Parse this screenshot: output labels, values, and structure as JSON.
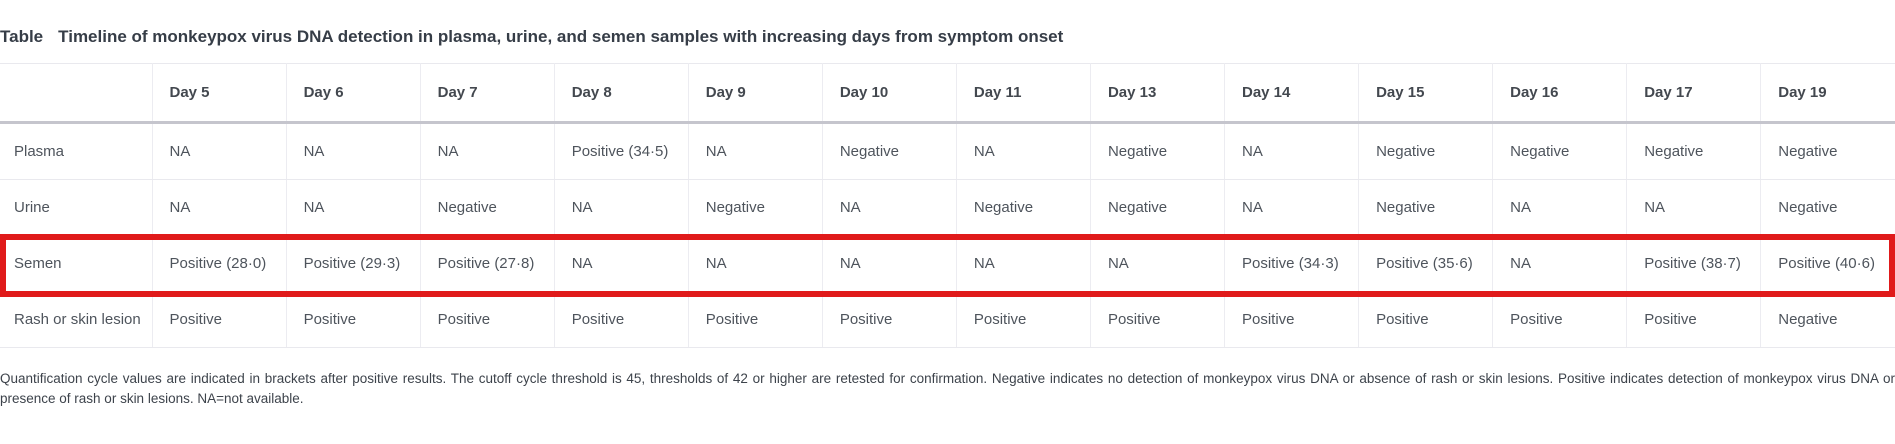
{
  "title": {
    "label": "Table",
    "caption": "Timeline of monkeypox virus DNA detection in plasma, urine, and semen samples with increasing days from symptom onset"
  },
  "table": {
    "columns": [
      "",
      "Day 5",
      "Day 6",
      "Day 7",
      "Day 8",
      "Day 9",
      "Day 10",
      "Day 11",
      "Day 13",
      "Day 14",
      "Day 15",
      "Day 16",
      "Day 17",
      "Day 19"
    ],
    "rows": [
      {
        "label": "Plasma",
        "highlighted": false,
        "values": [
          "NA",
          "NA",
          "NA",
          "Positive (34·5)",
          "NA",
          "Negative",
          "NA",
          "Negative",
          "NA",
          "Negative",
          "Negative",
          "Negative",
          "Negative"
        ]
      },
      {
        "label": "Urine",
        "highlighted": false,
        "values": [
          "NA",
          "NA",
          "Negative",
          "NA",
          "Negative",
          "NA",
          "Negative",
          "Negative",
          "NA",
          "Negative",
          "NA",
          "NA",
          "Negative"
        ]
      },
      {
        "label": "Semen",
        "highlighted": true,
        "values": [
          "Positive (28·0)",
          "Positive (29·3)",
          "Positive (27·8)",
          "NA",
          "NA",
          "NA",
          "NA",
          "NA",
          "Positive (34·3)",
          "Positive (35·6)",
          "NA",
          "Positive (38·7)",
          "Positive (40·6)"
        ]
      },
      {
        "label": "Rash or skin lesion",
        "highlighted": false,
        "values": [
          "Positive",
          "Positive",
          "Positive",
          "Positive",
          "Positive",
          "Positive",
          "Positive",
          "Positive",
          "Positive",
          "Positive",
          "Positive",
          "Positive",
          "Negative"
        ]
      }
    ]
  },
  "footnote": "Quantification cycle values are indicated in brackets after positive results. The cutoff cycle threshold is 45, thresholds of 42 or higher are retested for confirmation. Negative indicates no detection of monkeypox virus DNA or absence of rash or skin lesions. Positive indicates detection of monkeypox virus DNA or presence of rash or skin lesions. NA=not available.",
  "colors": {
    "highlight_border": "#e01a1a",
    "title_text": "#363d47",
    "cell_text": "#4e545c",
    "header_rule": "#c5c5cd",
    "grid_line": "#ececf1"
  }
}
